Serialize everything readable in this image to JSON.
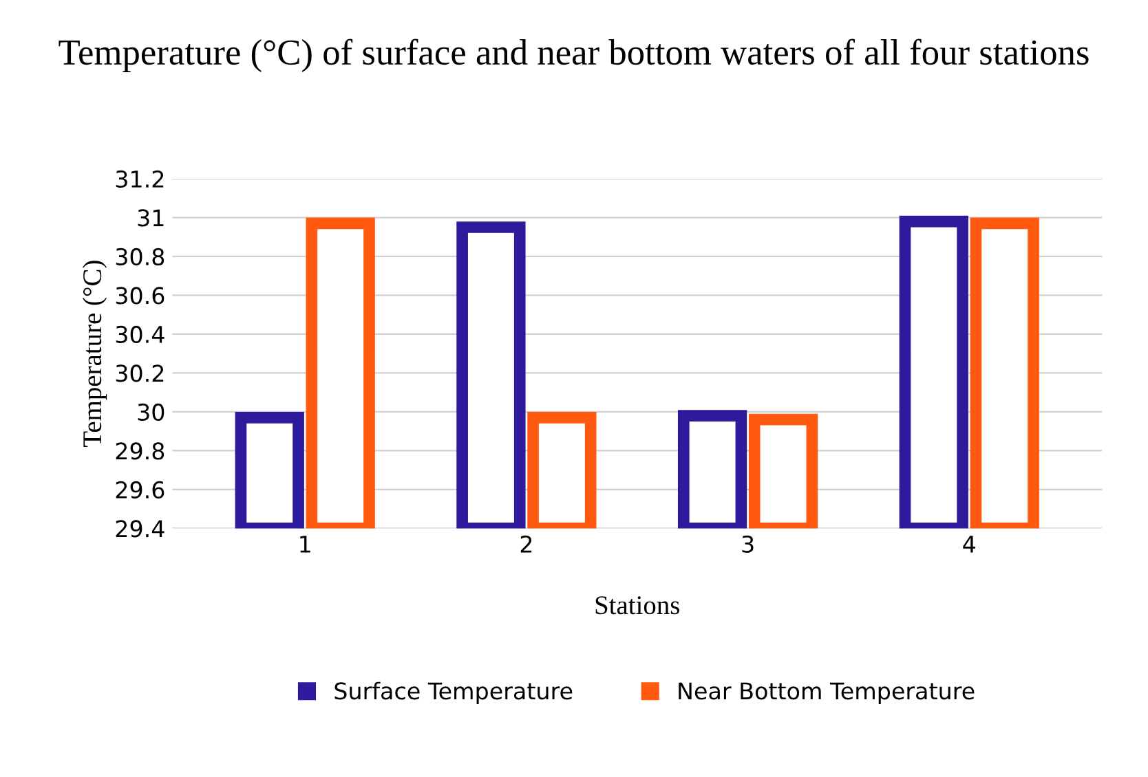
{
  "chart_data": {
    "type": "bar",
    "title": "Temperature (°C) of surface and near bottom waters of all four stations",
    "xlabel": "Stations",
    "ylabel": "Temperature (°C)",
    "categories": [
      "1",
      "2",
      "3",
      "4"
    ],
    "series": [
      {
        "name": "Surface Temperature",
        "color": "#2e1a9c",
        "values": [
          29.97,
          30.95,
          29.98,
          30.98
        ]
      },
      {
        "name": "Near Bottom Temperature",
        "color": "#ff5a10",
        "values": [
          30.97,
          29.97,
          29.96,
          30.97
        ]
      }
    ],
    "ylim": [
      29.4,
      31.2
    ],
    "yticks": [
      29.4,
      29.6,
      29.8,
      30,
      30.2,
      30.4,
      30.6,
      30.8,
      31,
      31.2
    ],
    "grid": "y",
    "legend": "bottom"
  }
}
